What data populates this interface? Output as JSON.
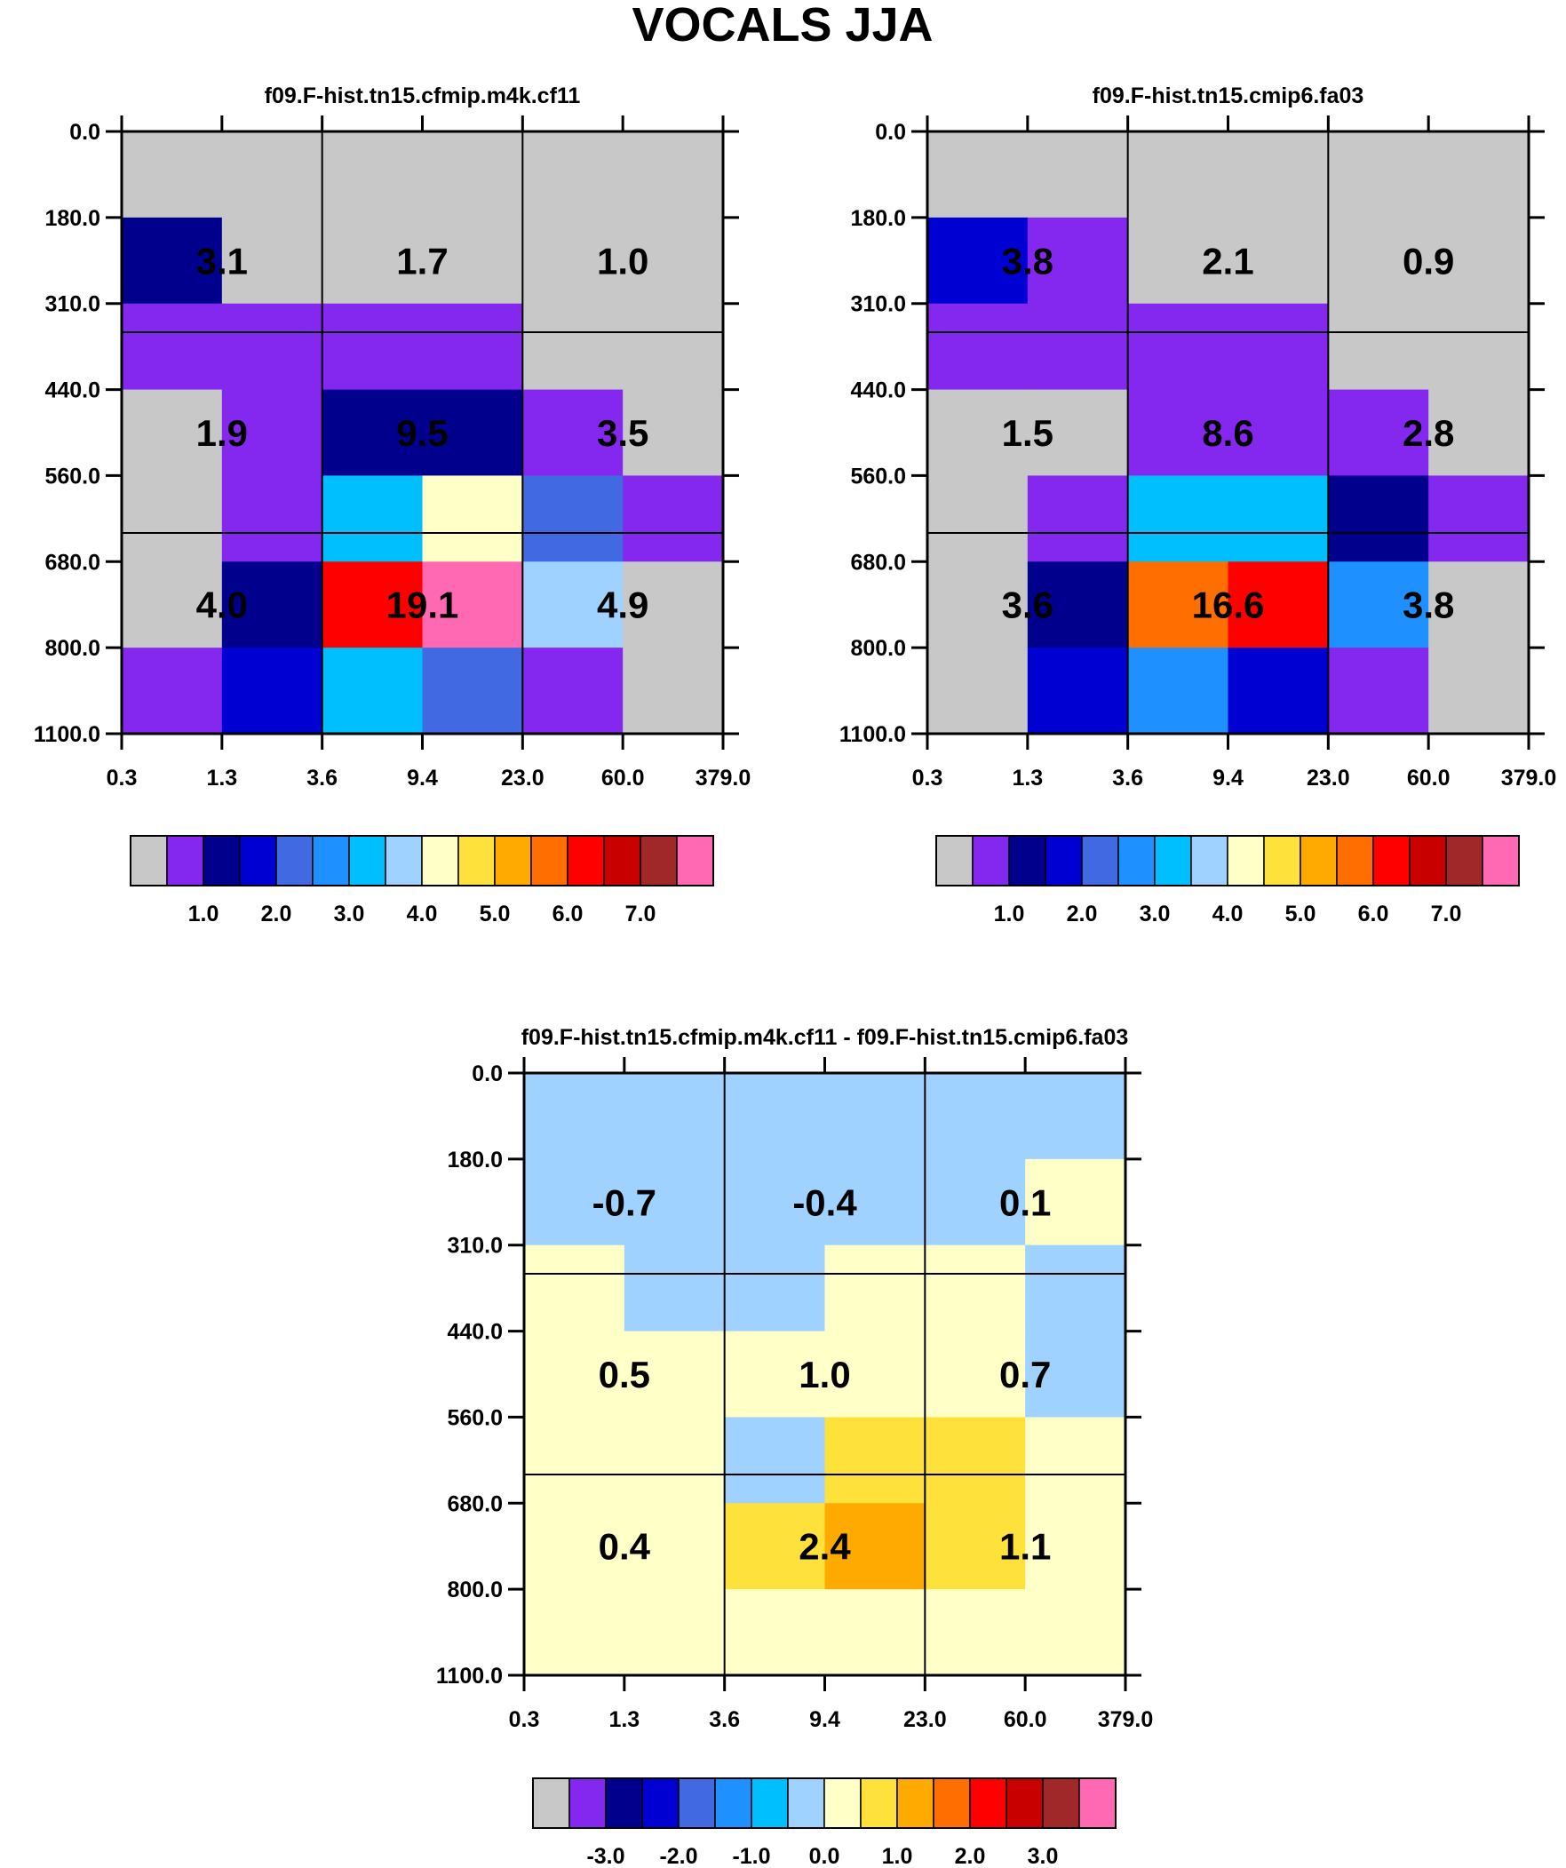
{
  "title": "VOCALS JJA",
  "chart_data": {
    "type": "heatmap",
    "title": "VOCALS JJA",
    "x_tick_labels": [
      "0.3",
      "1.3",
      "3.6",
      "9.4",
      "23.0",
      "60.0",
      "379.0"
    ],
    "y_tick_labels": [
      "0.0",
      "180.0",
      "310.0",
      "440.0",
      "560.0",
      "680.0",
      "800.0",
      "1100.0"
    ],
    "colorbar_colors": [
      "#c8c8c8",
      "#8428f0",
      "#00008c",
      "#0000d2",
      "#4169e1",
      "#1e90ff",
      "#00bfff",
      "#a0d2ff",
      "#ffffc8",
      "#ffe13c",
      "#ffaa00",
      "#ff6e00",
      "#ff0000",
      "#c80000",
      "#a02828",
      "#ff69b4"
    ],
    "panels": [
      {
        "name": "f09.F-hist.tn15.cfmip.m4k.cf11",
        "colorbar_labels": [
          "1.0",
          "2.0",
          "3.0",
          "4.0",
          "5.0",
          "6.0",
          "7.0"
        ],
        "cells": [
          [
            0,
            0,
            0,
            0,
            0,
            0
          ],
          [
            2,
            0,
            0,
            0,
            0,
            0
          ],
          [
            1,
            1,
            1,
            1,
            0,
            0
          ],
          [
            0,
            1,
            2,
            2,
            1,
            0
          ],
          [
            0,
            1,
            6,
            8,
            4,
            1
          ],
          [
            0,
            2,
            12,
            15,
            7,
            0
          ],
          [
            1,
            3,
            6,
            4,
            1,
            0
          ]
        ],
        "group_totals": [
          [
            "3.1",
            "1.7",
            "1.0"
          ],
          [
            "1.9",
            "9.5",
            "3.5"
          ],
          [
            "4.0",
            "19.1",
            "4.9"
          ]
        ]
      },
      {
        "name": "f09.F-hist.tn15.cmip6.fa03",
        "colorbar_labels": [
          "1.0",
          "2.0",
          "3.0",
          "4.0",
          "5.0",
          "6.0",
          "7.0"
        ],
        "cells": [
          [
            0,
            0,
            0,
            0,
            0,
            0
          ],
          [
            3,
            1,
            0,
            0,
            0,
            0
          ],
          [
            1,
            1,
            1,
            1,
            0,
            0
          ],
          [
            0,
            0,
            1,
            1,
            1,
            0
          ],
          [
            0,
            1,
            6,
            6,
            2,
            1
          ],
          [
            0,
            2,
            11,
            12,
            5,
            0
          ],
          [
            0,
            3,
            5,
            3,
            1,
            0
          ]
        ],
        "group_totals": [
          [
            "3.8",
            "2.1",
            "0.9"
          ],
          [
            "1.5",
            "8.6",
            "2.8"
          ],
          [
            "3.6",
            "16.6",
            "3.8"
          ]
        ]
      },
      {
        "name": "f09.F-hist.tn15.cfmip.m4k.cf11 - f09.F-hist.tn15.cmip6.fa03",
        "colorbar_labels": [
          "-3.0",
          "-2.0",
          "-1.0",
          "0.0",
          "1.0",
          "2.0",
          "3.0"
        ],
        "cells": [
          [
            7,
            7,
            7,
            7,
            7,
            7
          ],
          [
            7,
            7,
            7,
            7,
            7,
            8
          ],
          [
            8,
            7,
            7,
            8,
            8,
            7
          ],
          [
            8,
            8,
            8,
            8,
            8,
            7
          ],
          [
            8,
            8,
            7,
            9,
            9,
            8
          ],
          [
            8,
            8,
            9,
            10,
            9,
            8
          ],
          [
            8,
            8,
            8,
            8,
            8,
            8
          ]
        ],
        "group_totals": [
          [
            "-0.7",
            "-0.4",
            "0.1"
          ],
          [
            "0.5",
            "1.0",
            "0.7"
          ],
          [
            "0.4",
            "2.4",
            "1.1"
          ]
        ]
      }
    ]
  }
}
